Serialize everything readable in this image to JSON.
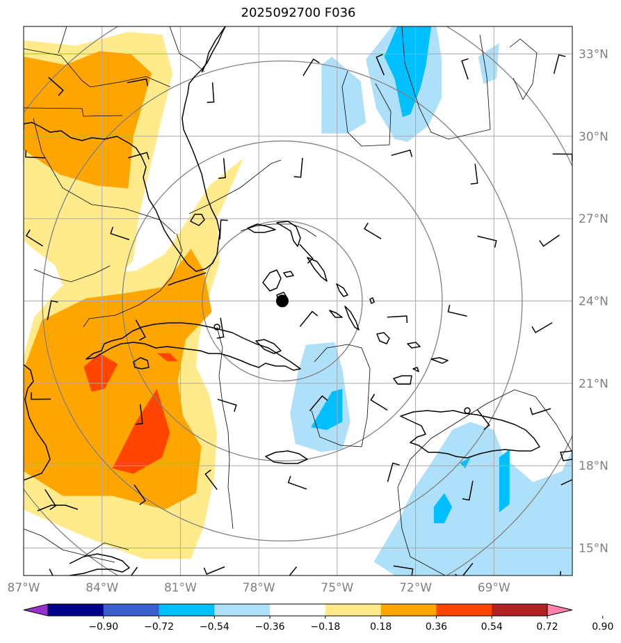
{
  "title": "2025092700 F036",
  "map": {
    "lon_range": [
      -87,
      -66
    ],
    "lat_range": [
      14,
      34
    ],
    "lat_ticks": [
      "33°N",
      "30°N",
      "27°N",
      "24°N",
      "21°N",
      "18°N",
      "15°N"
    ],
    "lon_ticks": [
      "87°W",
      "84°W",
      "81°W",
      "78°W",
      "75°W",
      "72°W",
      "69°W"
    ],
    "center_marker": {
      "lon": -77.1,
      "lat": 24.0,
      "label": "storm-center"
    },
    "range_rings_deg": [
      3,
      6,
      9,
      12
    ],
    "colors": {
      "coast": "#000000",
      "border": "#000000",
      "grid": "#a9a9a9",
      "ring": "#808080",
      "neg_light": "#aee0fa",
      "neg_mid": "#00bfff",
      "pos_light": "#ffeb8c",
      "pos_mid": "#ffa500",
      "pos_high": "#ff4500"
    }
  },
  "chart_data": {
    "type": "heatmap",
    "title": "2025092700 F036",
    "colorbar": {
      "levels": [
        "−0.90",
        "−0.72",
        "−0.54",
        "−0.36",
        "−0.18",
        "0.18",
        "0.36",
        "0.54",
        "0.72",
        "0.90"
      ],
      "values": [
        -0.9,
        -0.72,
        -0.54,
        -0.36,
        -0.18,
        0.18,
        0.36,
        0.54,
        0.72,
        0.9
      ],
      "colors": [
        "#9932cc",
        "#00008b",
        "#3a5fcd",
        "#00bfff",
        "#aee0fa",
        "#ffffff",
        "#ffeb8c",
        "#ffa500",
        "#ff4500",
        "#b22222",
        "#ff82ab"
      ],
      "extend": "both"
    },
    "regions": [
      {
        "name": "gulf-positive-anomaly",
        "level": 0.18,
        "polygon": [
          [
            -87,
            33.5
          ],
          [
            -85,
            33.3
          ],
          [
            -83,
            33.8
          ],
          [
            -81.7,
            33.7
          ],
          [
            -81.3,
            32.3
          ],
          [
            -81.7,
            30.7
          ],
          [
            -82.2,
            28.7
          ],
          [
            -82.6,
            27
          ],
          [
            -82.8,
            25.5
          ],
          [
            -83.6,
            24.6
          ],
          [
            -84.5,
            24.4
          ],
          [
            -85.3,
            24.1
          ],
          [
            -85.8,
            25.3
          ],
          [
            -86.5,
            25.8
          ],
          [
            -87,
            26.2
          ]
        ]
      },
      {
        "name": "gulf-moderate-anomaly",
        "level": 0.36,
        "polygon": [
          [
            -87,
            32.9
          ],
          [
            -85.4,
            32.6
          ],
          [
            -84.1,
            33.1
          ],
          [
            -82.9,
            33
          ],
          [
            -82.1,
            32.3
          ],
          [
            -82.8,
            30
          ],
          [
            -83,
            28.1
          ],
          [
            -84.2,
            28.2
          ],
          [
            -85.6,
            28.6
          ],
          [
            -87,
            29.5
          ]
        ]
      },
      {
        "name": "cuba-positive-anomaly",
        "level": 0.18,
        "polygon": [
          [
            -87,
            22
          ],
          [
            -86.6,
            23.4
          ],
          [
            -85.6,
            24.5
          ],
          [
            -84.2,
            25
          ],
          [
            -82.7,
            25.1
          ],
          [
            -81.6,
            25.7
          ],
          [
            -80.9,
            26.7
          ],
          [
            -79.9,
            28.2
          ],
          [
            -78.6,
            29.2
          ],
          [
            -78.9,
            28.5
          ],
          [
            -79.6,
            27
          ],
          [
            -79.5,
            25.4
          ],
          [
            -80,
            23.9
          ],
          [
            -80.3,
            22.6
          ],
          [
            -80.4,
            21.6
          ],
          [
            -79.9,
            20.6
          ],
          [
            -79.6,
            19.2
          ],
          [
            -79.7,
            17.6
          ],
          [
            -80.1,
            15.8
          ],
          [
            -80.6,
            14.6
          ],
          [
            -82.4,
            14.6
          ],
          [
            -84.1,
            15.2
          ],
          [
            -85.6,
            15.8
          ],
          [
            -87,
            16.4
          ]
        ]
      },
      {
        "name": "cuba-moderate-anomaly",
        "level": 0.36,
        "polygon": [
          [
            -87,
            21.5
          ],
          [
            -86.3,
            23.3
          ],
          [
            -84.6,
            24.1
          ],
          [
            -83,
            24.3
          ],
          [
            -81.7,
            24.5
          ],
          [
            -80.6,
            25.9
          ],
          [
            -80.1,
            25.1
          ],
          [
            -79.8,
            23.6
          ],
          [
            -80.8,
            22.6
          ],
          [
            -81.1,
            21.1
          ],
          [
            -80.9,
            19.8
          ],
          [
            -80.2,
            18.7
          ],
          [
            -80.4,
            17
          ],
          [
            -81.6,
            16.4
          ],
          [
            -83.6,
            16.9
          ],
          [
            -85.5,
            16.9
          ],
          [
            -87,
            17.8
          ]
        ]
      },
      {
        "name": "cuba-high-anomaly-west",
        "level": 0.54,
        "polygon": [
          [
            -84.7,
            21.6
          ],
          [
            -84.1,
            22.1
          ],
          [
            -83.4,
            21.7
          ],
          [
            -83.9,
            20.8
          ],
          [
            -84.4,
            20.7
          ]
        ]
      },
      {
        "name": "cuba-high-anomaly-south",
        "level": 0.54,
        "polygon": [
          [
            -81.9,
            20.8
          ],
          [
            -81.4,
            19.2
          ],
          [
            -81.7,
            18.3
          ],
          [
            -82.8,
            17.7
          ],
          [
            -83.6,
            17.9
          ],
          [
            -82.7,
            19.6
          ]
        ]
      },
      {
        "name": "cuba-high-anomaly-east",
        "level": 0.54,
        "polygon": [
          [
            -81.9,
            22.1
          ],
          [
            -81.4,
            22.1
          ],
          [
            -81.1,
            21.8
          ],
          [
            -81.5,
            21.8
          ]
        ]
      },
      {
        "name": "bahamas-negative-anomaly",
        "level": -0.18,
        "polygon": [
          [
            -76.5,
            21.4
          ],
          [
            -76.2,
            22.4
          ],
          [
            -75.1,
            22.5
          ],
          [
            -74.8,
            21.5
          ],
          [
            -74.5,
            19.6
          ],
          [
            -74.8,
            18.6
          ],
          [
            -75.6,
            18.5
          ],
          [
            -76.6,
            18.8
          ],
          [
            -76.8,
            19.9
          ]
        ]
      },
      {
        "name": "bahamas-moderate-negative",
        "level": -0.36,
        "polygon": [
          [
            -75.2,
            20.7
          ],
          [
            -74.8,
            20.8
          ],
          [
            -74.8,
            19.6
          ],
          [
            -75.4,
            19.3
          ],
          [
            -76,
            19.4
          ]
        ]
      },
      {
        "name": "north-atlantic-negative",
        "level": -0.18,
        "polygon": [
          [
            -72.9,
            34
          ],
          [
            -71.2,
            34
          ],
          [
            -71,
            32.8
          ],
          [
            -71,
            31.4
          ],
          [
            -71.5,
            30.4
          ],
          [
            -72.3,
            29.8
          ],
          [
            -72.8,
            29.9
          ],
          [
            -73.5,
            31
          ],
          [
            -73.9,
            32.8
          ]
        ]
      },
      {
        "name": "north-atlantic-moderate-negative",
        "level": -0.36,
        "polygon": [
          [
            -72.7,
            34
          ],
          [
            -71.4,
            34
          ],
          [
            -71.6,
            32.6
          ],
          [
            -71.8,
            31.8
          ],
          [
            -72.2,
            30.8
          ],
          [
            -72.5,
            30.7
          ],
          [
            -72.8,
            32.1
          ],
          [
            -73.2,
            32.9
          ]
        ]
      },
      {
        "name": "northeast-negative",
        "level": -0.18,
        "polygon": [
          [
            -69.6,
            32.9
          ],
          [
            -68.8,
            33.4
          ],
          [
            -68.9,
            32.1
          ],
          [
            -69.4,
            31.9
          ]
        ]
      },
      {
        "name": "central-atlantic-negative",
        "level": -0.18,
        "polygon": [
          [
            -75.6,
            32.6
          ],
          [
            -75.2,
            32.9
          ],
          [
            -74.1,
            32
          ],
          [
            -73.9,
            30.5
          ],
          [
            -74.6,
            30.1
          ],
          [
            -75.6,
            30.1
          ]
        ]
      },
      {
        "name": "caribbean-negative-anomaly",
        "level": -0.18,
        "polygon": [
          [
            -73.6,
            14.5
          ],
          [
            -72.6,
            16.1
          ],
          [
            -72.1,
            17.1
          ],
          [
            -71.4,
            18.1
          ],
          [
            -70.6,
            19.3
          ],
          [
            -69.9,
            19.6
          ],
          [
            -69,
            19.3
          ],
          [
            -68.6,
            18.3
          ],
          [
            -67.5,
            17.4
          ],
          [
            -66.4,
            17.8
          ],
          [
            -66,
            18.6
          ],
          [
            -66,
            14
          ],
          [
            -72.8,
            14
          ]
        ]
      },
      {
        "name": "caribbean-moderate-negative-west",
        "level": -0.36,
        "polygon": [
          [
            -71.3,
            16.5
          ],
          [
            -70.9,
            17
          ],
          [
            -70.6,
            16.5
          ],
          [
            -70.9,
            15.9
          ],
          [
            -71.3,
            15.9
          ]
        ]
      },
      {
        "name": "caribbean-moderate-negative-east",
        "level": -0.36,
        "polygon": [
          [
            -68.8,
            18.3
          ],
          [
            -68.4,
            18.6
          ],
          [
            -68.4,
            16.6
          ],
          [
            -68.8,
            16.3
          ]
        ]
      },
      {
        "name": "caribbean-moderate-negative-mid",
        "level": -0.36,
        "polygon": [
          [
            -70.3,
            18.1
          ],
          [
            -69.9,
            18.3
          ],
          [
            -70.1,
            17.9
          ]
        ]
      }
    ]
  }
}
